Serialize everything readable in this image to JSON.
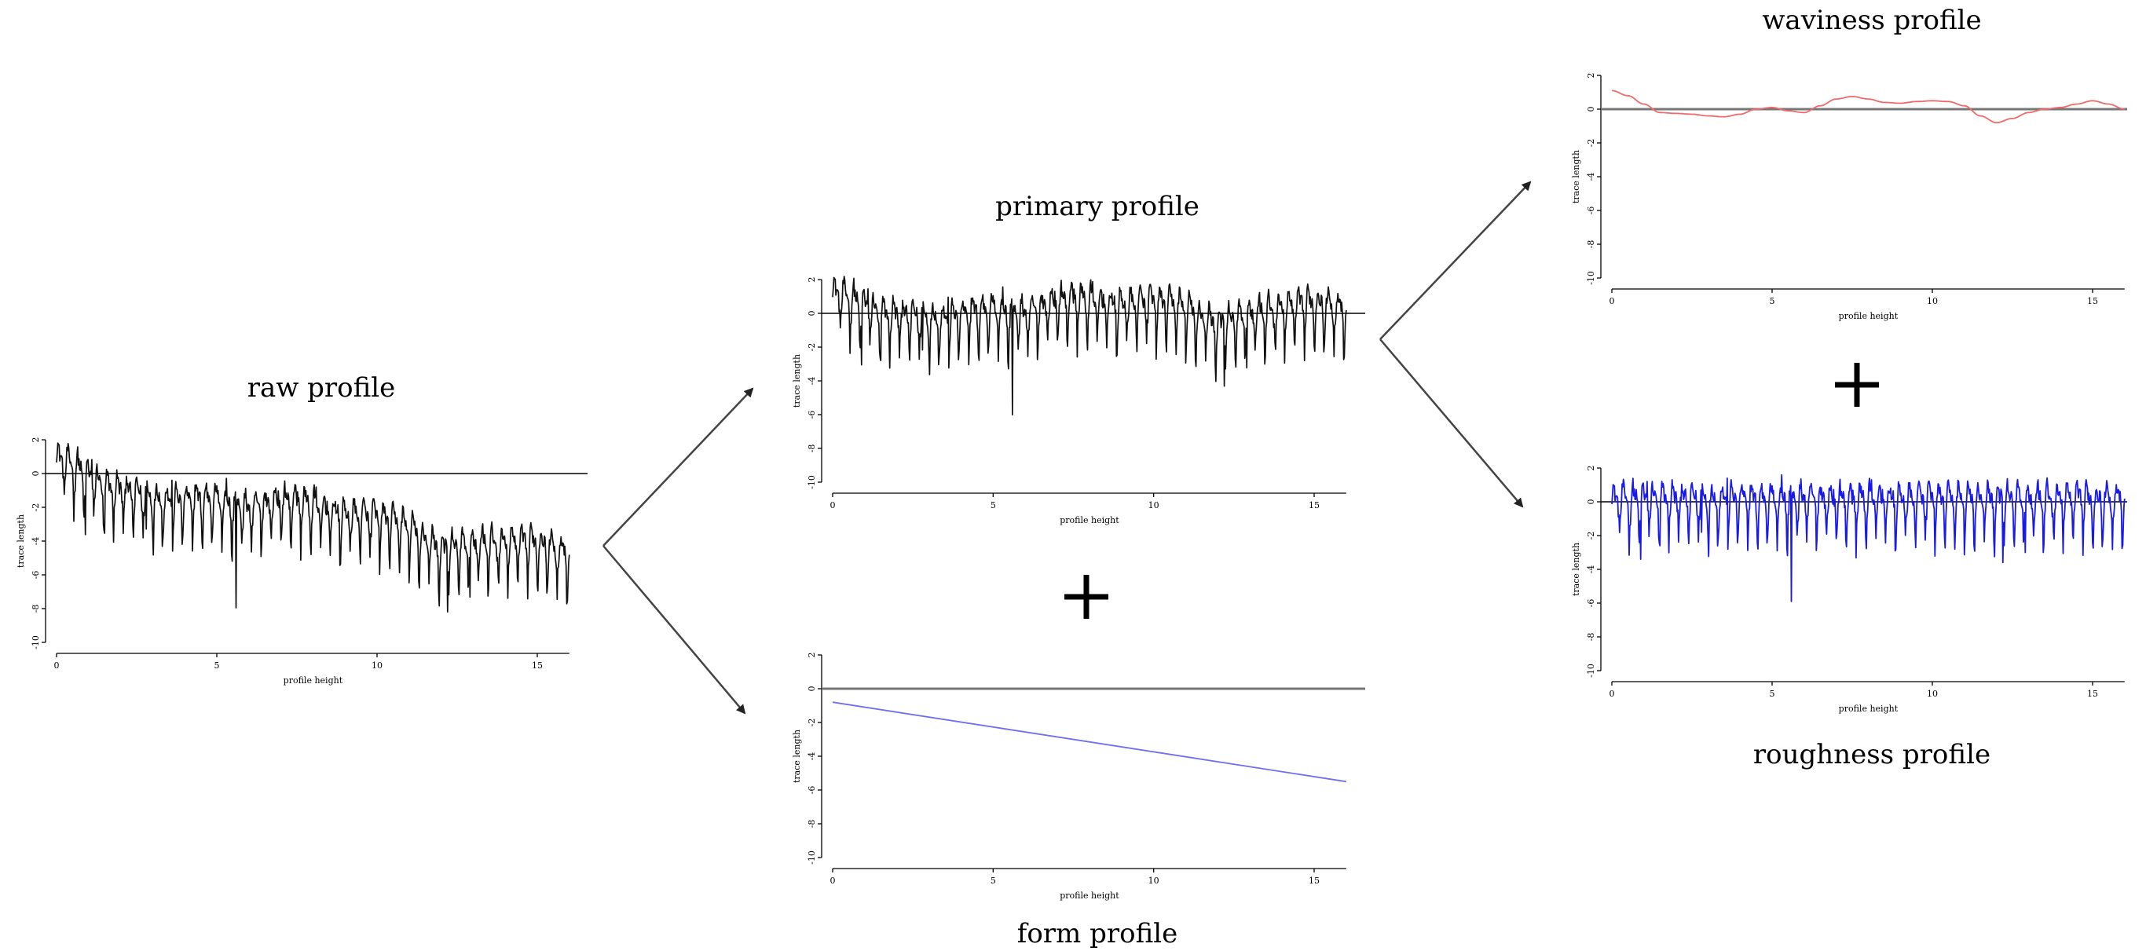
{
  "colors": {
    "raw": "#111111",
    "primary": "#111111",
    "form": "#6f6ff0",
    "waviness": "#f06a6a",
    "roughness": "#1a1ae8"
  },
  "icons": [
    "plus-icon",
    "arrow-icon"
  ],
  "chart_data": [
    {
      "id": "raw",
      "type": "line",
      "title": "raw profile",
      "xlabel": "profile height",
      "ylabel": "trace length",
      "xticks": [
        "0",
        "5",
        "10",
        "15"
      ],
      "yticks": [
        "2",
        "0",
        "-2",
        "-4",
        "-6",
        "-8",
        "-10"
      ],
      "xlim": [
        0,
        16
      ],
      "ylim": [
        -10,
        2
      ],
      "zero_line": true,
      "series": [
        {
          "style": "dark",
          "kind": "raw",
          "trend": [
            -0.5,
            -6.0
          ],
          "approx_points": 800
        }
      ]
    },
    {
      "id": "primary",
      "type": "line",
      "title": "primary profile",
      "xlabel": "profile height",
      "ylabel": "trace length",
      "xticks": [
        "0",
        "5",
        "10",
        "15"
      ],
      "yticks": [
        "2",
        "0",
        "-2",
        "-4",
        "-6",
        "-8",
        "-10"
      ],
      "xlim": [
        0,
        16
      ],
      "ylim": [
        -10,
        2
      ],
      "zero_line": true,
      "series": [
        {
          "style": "dark",
          "kind": "primary",
          "trend": [
            0,
            0
          ],
          "approx_points": 800
        }
      ]
    },
    {
      "id": "form",
      "type": "line",
      "title": "form profile",
      "xlabel": "profile height",
      "ylabel": "trace length",
      "xticks": [
        "0",
        "5",
        "10",
        "15"
      ],
      "yticks": [
        "2",
        "0",
        "-2",
        "-4",
        "-6",
        "-8",
        "-10"
      ],
      "xlim": [
        0,
        16
      ],
      "ylim": [
        -10,
        2
      ],
      "zero_line": true,
      "series": [
        {
          "style": "form",
          "kind": "linear",
          "x": [
            0,
            16
          ],
          "y": [
            -0.8,
            -5.5
          ]
        }
      ]
    },
    {
      "id": "waviness",
      "type": "line",
      "title": "waviness profile",
      "xlabel": "profile height",
      "ylabel": "trace length",
      "xticks": [
        "0",
        "5",
        "10",
        "15"
      ],
      "yticks": [
        "2",
        "0",
        "-2",
        "-4",
        "-6",
        "-8",
        "-10"
      ],
      "xlim": [
        0,
        16
      ],
      "ylim": [
        -10,
        2
      ],
      "zero_line": true,
      "series": [
        {
          "style": "waviness",
          "kind": "points",
          "x": [
            0,
            0.5,
            1.0,
            1.5,
            2.0,
            2.5,
            3.0,
            3.5,
            4.0,
            4.5,
            5.0,
            5.5,
            6.0,
            6.5,
            7.0,
            7.5,
            8.0,
            8.5,
            9.0,
            9.5,
            10.0,
            10.5,
            11.0,
            11.5,
            12.0,
            12.5,
            13.0,
            13.5,
            14.0,
            14.5,
            15.0,
            15.5,
            16.0
          ],
          "y": [
            1.1,
            0.8,
            0.3,
            -0.2,
            -0.25,
            -0.3,
            -0.4,
            -0.45,
            -0.3,
            0.0,
            0.1,
            -0.1,
            -0.2,
            0.2,
            0.6,
            0.75,
            0.6,
            0.4,
            0.35,
            0.45,
            0.5,
            0.45,
            0.2,
            -0.4,
            -0.8,
            -0.55,
            -0.2,
            0.0,
            0.1,
            0.3,
            0.5,
            0.3,
            0.0
          ]
        }
      ]
    },
    {
      "id": "roughness",
      "type": "line",
      "title": "roughness profile",
      "xlabel": "profile height",
      "ylabel": "trace length",
      "xticks": [
        "0",
        "5",
        "10",
        "15"
      ],
      "yticks": [
        "2",
        "0",
        "-2",
        "-4",
        "-6",
        "-8",
        "-10"
      ],
      "xlim": [
        0,
        16
      ],
      "ylim": [
        -10,
        2
      ],
      "zero_line": true,
      "series": [
        {
          "style": "roughness",
          "kind": "roughness",
          "trend": [
            0,
            0
          ],
          "approx_points": 800
        }
      ]
    }
  ]
}
